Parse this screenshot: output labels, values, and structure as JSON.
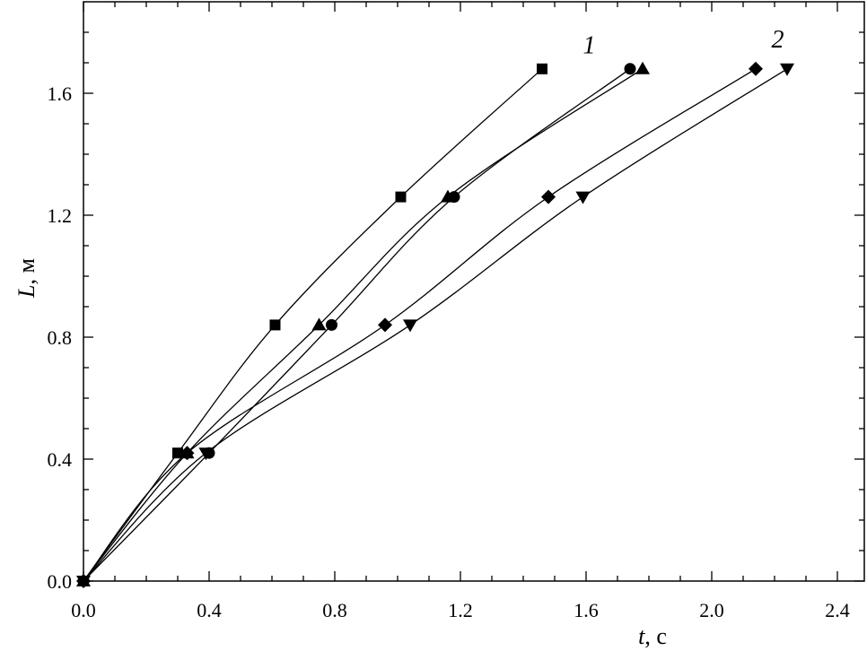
{
  "chart_data": {
    "type": "line",
    "title": "",
    "xlabel": {
      "symbol": "t",
      "unit": ", с"
    },
    "ylabel": {
      "symbol": "L",
      "unit": ", м"
    },
    "xlim": [
      0,
      2.5
    ],
    "ylim": [
      0,
      1.8
    ],
    "x_ticks": [
      "0.0",
      "0.4",
      "0.8",
      "1.2",
      "1.6",
      "2.0",
      "2.4"
    ],
    "y_ticks": [
      "0.0",
      "0.4",
      "0.8",
      "1.2",
      "1.6"
    ],
    "grid": false,
    "legend": "none",
    "series": [
      {
        "marker": "square",
        "points": [
          [
            0,
            0
          ],
          [
            0.3,
            0.42
          ],
          [
            0.61,
            0.84
          ],
          [
            1.01,
            1.26
          ],
          [
            1.46,
            1.68
          ]
        ]
      },
      {
        "marker": "circle",
        "points": [
          [
            0,
            0
          ],
          [
            0.4,
            0.42
          ],
          [
            0.79,
            0.84
          ],
          [
            1.18,
            1.26
          ],
          [
            1.74,
            1.68
          ]
        ]
      },
      {
        "marker": "triangle-up",
        "points": [
          [
            0,
            0
          ],
          [
            0.33,
            0.42
          ],
          [
            0.75,
            0.84
          ],
          [
            1.16,
            1.26
          ],
          [
            1.78,
            1.68
          ]
        ]
      },
      {
        "marker": "diamond",
        "points": [
          [
            0,
            0
          ],
          [
            0.33,
            0.42
          ],
          [
            0.96,
            0.84
          ],
          [
            1.48,
            1.26
          ],
          [
            2.14,
            1.68
          ]
        ]
      },
      {
        "marker": "triangle-down",
        "points": [
          [
            0,
            0
          ],
          [
            0.39,
            0.42
          ],
          [
            1.04,
            0.84
          ],
          [
            1.59,
            1.26
          ],
          [
            2.24,
            1.68
          ]
        ]
      }
    ],
    "annotations": [
      {
        "text": "1",
        "x": 1.61,
        "y": 1.76
      },
      {
        "text": "2",
        "x": 2.21,
        "y": 1.78
      }
    ]
  }
}
